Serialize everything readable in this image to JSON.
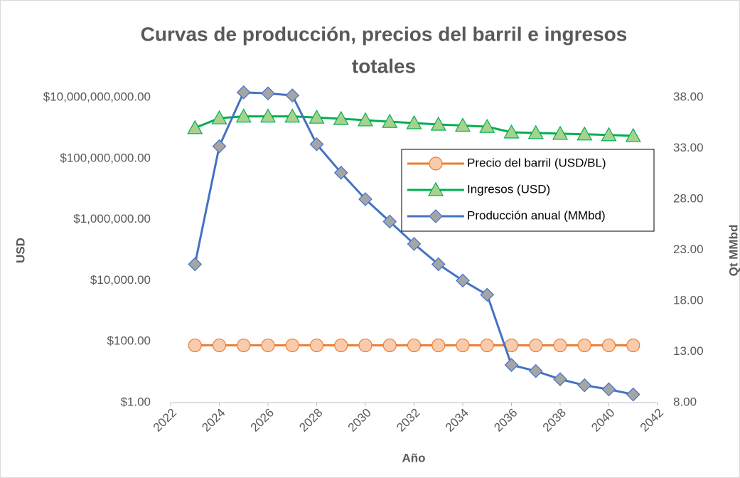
{
  "chart_data": {
    "type": "line",
    "title_lines": [
      "Curvas de producción, precios del barril e ingresos",
      "totales"
    ],
    "x_label": "Año",
    "y_label": "USD",
    "y2_label": "Qt  MMbd",
    "x": [
      2023,
      2024,
      2025,
      2026,
      2027,
      2028,
      2029,
      2030,
      2031,
      2032,
      2033,
      2034,
      2035,
      2036,
      2037,
      2038,
      2039,
      2040,
      2041
    ],
    "xlim": [
      2022,
      2042
    ],
    "xticks": [
      2022,
      2024,
      2026,
      2028,
      2030,
      2032,
      2034,
      2036,
      2038,
      2040,
      2042
    ],
    "y_scale": "log",
    "ylim": [
      1,
      10000000000
    ],
    "yticks": [
      {
        "value": 1,
        "label": "$1.00"
      },
      {
        "value": 100,
        "label": "$100.00"
      },
      {
        "value": 10000,
        "label": "$10,000.00"
      },
      {
        "value": 1000000,
        "label": "$1,000,000.00"
      },
      {
        "value": 100000000,
        "label": "$100,000,000.00"
      },
      {
        "value": 10000000000,
        "label": "$10,000,000,000.00"
      }
    ],
    "y2lim": [
      8,
      38
    ],
    "y2ticks": [
      {
        "value": 8,
        "label": "8.00"
      },
      {
        "value": 13,
        "label": "13.00"
      },
      {
        "value": 18,
        "label": "18.00"
      },
      {
        "value": 23,
        "label": "23.00"
      },
      {
        "value": 28,
        "label": "28.00"
      },
      {
        "value": 33,
        "label": "33.00"
      },
      {
        "value": 38,
        "label": "38.00"
      }
    ],
    "legend": "upper right",
    "series": [
      {
        "name": "Precio del barril (USD/BL)",
        "color": "#ed7d31",
        "marker_fill": "#f8cbad",
        "marker": "circle",
        "values": [
          75,
          75,
          75,
          75,
          75,
          75,
          75,
          75,
          75,
          75,
          75,
          75,
          75,
          75,
          75,
          75,
          75,
          75,
          75
        ]
      },
      {
        "name": "Ingresos (USD)",
        "color": "#00b050",
        "marker_fill": "#a9d18e",
        "marker": "triangle",
        "values": [
          1000000000,
          2100000000,
          2400000000,
          2400000000,
          2400000000,
          2200000000,
          2000000000,
          1800000000,
          1600000000,
          1450000000,
          1300000000,
          1200000000,
          1100000000,
          720000000,
          690000000,
          650000000,
          620000000,
          590000000,
          550000000
        ]
      },
      {
        "name": "Producción anual (MMbd)",
        "color": "#4472c4",
        "marker_fill": "#a5a5a5",
        "marker": "diamond",
        "axis": "y2",
        "values": [
          21.6,
          33.2,
          38.5,
          38.4,
          38.2,
          33.4,
          30.6,
          28.0,
          25.8,
          23.6,
          21.6,
          20.0,
          18.6,
          11.7,
          11.1,
          10.3,
          9.7,
          9.3,
          8.8
        ]
      }
    ]
  }
}
